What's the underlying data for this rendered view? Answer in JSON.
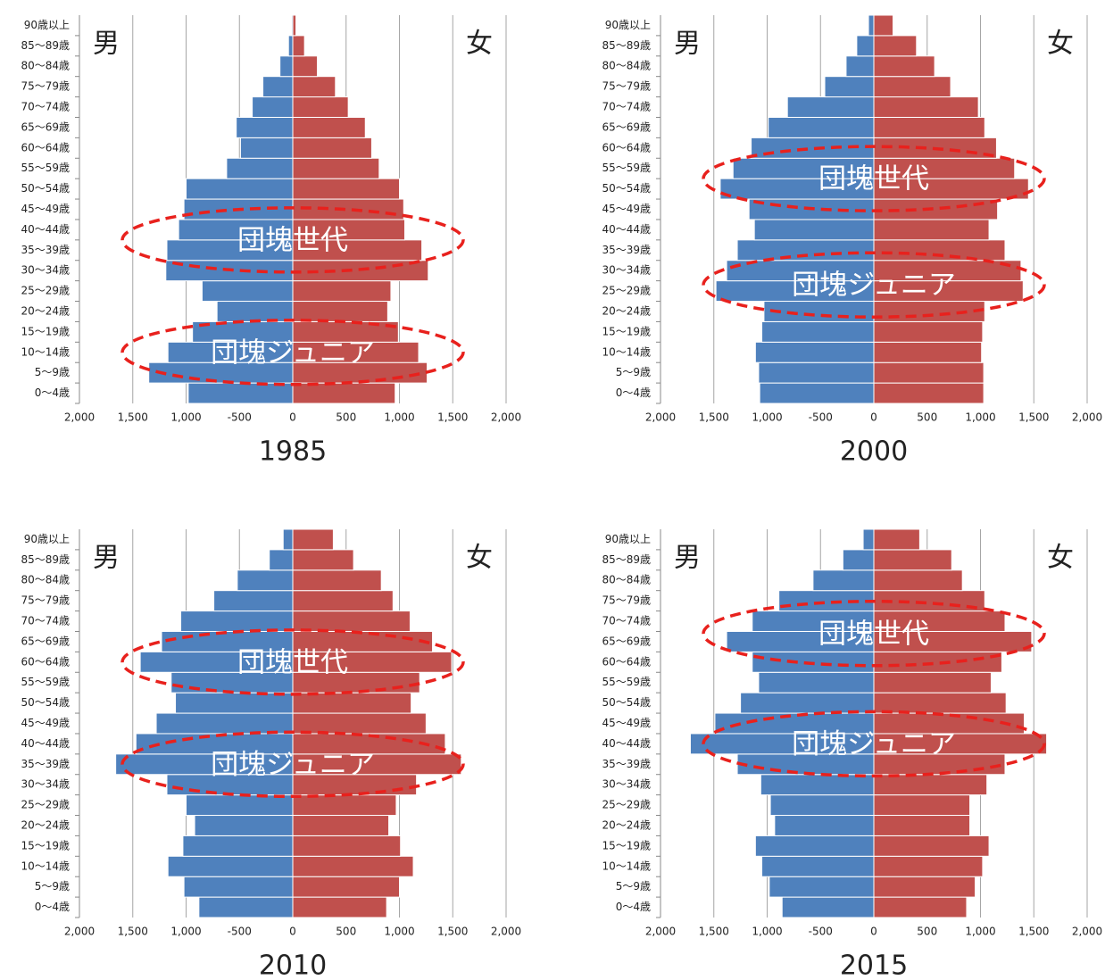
{
  "chart_data": [
    {
      "type": "pyramid",
      "title": "1985",
      "categories": [
        "0～4歳",
        "5～9歳",
        "10～14歳",
        "15～19歳",
        "20～24歳",
        "25～29歳",
        "30～34歳",
        "35～39歳",
        "40～44歳",
        "45～49歳",
        "50～54歳",
        "55～59歳",
        "60～64歳",
        "65～69歳",
        "70～74歳",
        "75～79歳",
        "80～84歳",
        "85～89歳",
        "90歳以上"
      ],
      "series": [
        {
          "name": "男",
          "color": "#4f81bd",
          "values": [
            -980,
            -1350,
            -1170,
            -940,
            -710,
            -850,
            -1190,
            -1180,
            -1070,
            -1020,
            -1000,
            -620,
            -490,
            -530,
            -380,
            -280,
            -120,
            -40,
            -10
          ]
        },
        {
          "name": "女",
          "color": "#c0504d",
          "values": [
            960,
            1260,
            1180,
            990,
            890,
            920,
            1270,
            1210,
            1050,
            1040,
            1000,
            810,
            740,
            680,
            520,
            400,
            230,
            110,
            30
          ]
        }
      ],
      "annotations": [
        "団塊世代",
        "団塊ジュニア"
      ],
      "xlim": [
        -2000,
        2000
      ],
      "xticks": [
        {
          "value": -2000,
          "label": "2,000"
        },
        {
          "value": -1500,
          "label": "1,500"
        },
        {
          "value": -1000,
          "label": "1,000"
        },
        -500,
        0,
        500,
        {
          "value": 1000,
          "label": "1,000"
        },
        {
          "value": 1500,
          "label": "1,500"
        },
        {
          "value": 2000,
          "label": "2,000"
        }
      ],
      "grid": true
    },
    {
      "type": "pyramid",
      "title": "2000",
      "categories": [
        "0～4歳",
        "5～9歳",
        "10～14歳",
        "15～19歳",
        "20～24歳",
        "25～29歳",
        "30～34歳",
        "35～39歳",
        "40～44歳",
        "45～49歳",
        "50～54歳",
        "55～59歳",
        "60～64歳",
        "65～69歳",
        "70～74歳",
        "75～79歳",
        "80～84歳",
        "85～89歳",
        "90歳以上"
      ],
      "series": [
        {
          "name": "男",
          "color": "#4f81bd",
          "values": [
            -1070,
            -1080,
            -1110,
            -1050,
            -1030,
            -1480,
            -1380,
            -1280,
            -1120,
            -1170,
            -1440,
            -1320,
            -1150,
            -990,
            -810,
            -460,
            -260,
            -160,
            -50
          ]
        },
        {
          "name": "女",
          "color": "#c0504d",
          "values": [
            1030,
            1030,
            1010,
            1020,
            1040,
            1400,
            1380,
            1230,
            1080,
            1160,
            1450,
            1320,
            1150,
            1040,
            980,
            720,
            570,
            400,
            180
          ]
        }
      ],
      "annotations": [
        "団塊世代",
        "団塊ジュニア"
      ],
      "xlim": [
        -2000,
        2000
      ],
      "xticks": [
        {
          "value": -2000,
          "label": "2,000"
        },
        {
          "value": -1500,
          "label": "1,500"
        },
        {
          "value": -1000,
          "label": "1,000"
        },
        -500,
        0,
        500,
        {
          "value": 1000,
          "label": "1,000"
        },
        {
          "value": 1500,
          "label": "1,500"
        },
        {
          "value": 2000,
          "label": "2,000"
        }
      ],
      "grid": true
    },
    {
      "type": "pyramid",
      "title": "2010",
      "categories": [
        "0～4歳",
        "5～9歳",
        "10～14歳",
        "15～19歳",
        "20～24歳",
        "25～29歳",
        "30～34歳",
        "35～39歳",
        "40～44歳",
        "45～49歳",
        "50～54歳",
        "55～59歳",
        "60～64歳",
        "65～69歳",
        "70～74歳",
        "75～79歳",
        "80～84歳",
        "85～89歳",
        "90歳以上"
      ],
      "series": [
        {
          "name": "男",
          "color": "#4f81bd",
          "values": [
            -880,
            -1020,
            -1170,
            -1030,
            -920,
            -1000,
            -1180,
            -1660,
            -1470,
            -1280,
            -1100,
            -1140,
            -1430,
            -1230,
            -1050,
            -740,
            -520,
            -220,
            -90
          ]
        },
        {
          "name": "女",
          "color": "#c0504d",
          "values": [
            880,
            1000,
            1130,
            1010,
            900,
            970,
            1160,
            1580,
            1430,
            1250,
            1110,
            1190,
            1490,
            1310,
            1100,
            940,
            830,
            570,
            380
          ]
        }
      ],
      "annotations": [
        "団塊世代",
        "団塊ジュニア"
      ],
      "xlim": [
        -2000,
        2000
      ],
      "xticks": [
        {
          "value": -2000,
          "label": "2,000"
        },
        {
          "value": -1500,
          "label": "1,500"
        },
        {
          "value": -1000,
          "label": "1,000"
        },
        -500,
        0,
        500,
        {
          "value": 1000,
          "label": "1,000"
        },
        {
          "value": 1500,
          "label": "1,500"
        },
        {
          "value": 2000,
          "label": "2,000"
        }
      ],
      "grid": true
    },
    {
      "type": "pyramid",
      "title": "2015",
      "categories": [
        "0～4歳",
        "5～9歳",
        "10～14歳",
        "15～19歳",
        "20～24歳",
        "25～29歳",
        "30～34歳",
        "35～39歳",
        "40～44歳",
        "45～49歳",
        "50～54歳",
        "55～59歳",
        "60～64歳",
        "65～69歳",
        "70～74歳",
        "75～79歳",
        "80～84歳",
        "85～89歳",
        "90歳以上"
      ],
      "series": [
        {
          "name": "男",
          "color": "#4f81bd",
          "values": [
            -860,
            -980,
            -1050,
            -1110,
            -930,
            -970,
            -1060,
            -1280,
            -1720,
            -1490,
            -1250,
            -1080,
            -1140,
            -1380,
            -1140,
            -890,
            -570,
            -290,
            -100
          ]
        },
        {
          "name": "女",
          "color": "#c0504d",
          "values": [
            870,
            950,
            1020,
            1080,
            900,
            900,
            1060,
            1230,
            1620,
            1410,
            1240,
            1100,
            1200,
            1480,
            1230,
            1040,
            830,
            730,
            430
          ]
        }
      ],
      "annotations": [
        "団塊世代",
        "団塊ジュニア"
      ],
      "xlim": [
        -2000,
        2000
      ],
      "xticks": [
        {
          "value": -2000,
          "label": "2,000"
        },
        {
          "value": -1500,
          "label": "1,500"
        },
        {
          "value": -1000,
          "label": "1,000"
        },
        -500,
        0,
        500,
        {
          "value": 1000,
          "label": "1,000"
        },
        {
          "value": 1500,
          "label": "1,500"
        },
        {
          "value": 2000,
          "label": "2,000"
        }
      ],
      "grid": true
    }
  ]
}
